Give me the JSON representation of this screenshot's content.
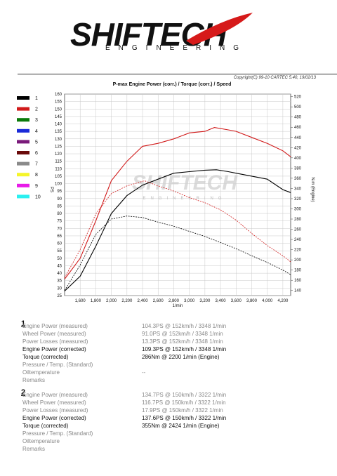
{
  "header": {
    "logo_main": "SHIFTECH",
    "logo_sub": "ENGINEERING",
    "copyright": "Copyright(C) 99-10 CARTEC 5.40, 19/02/13"
  },
  "legend": [
    {
      "label": "1",
      "color": "#000000"
    },
    {
      "label": "2",
      "color": "#d11a1a"
    },
    {
      "label": "3",
      "color": "#0a7a0a"
    },
    {
      "label": "4",
      "color": "#1a2ad8"
    },
    {
      "label": "5",
      "color": "#7a1a7a"
    },
    {
      "label": "6",
      "color": "#6a0a0a"
    },
    {
      "label": "7",
      "color": "#8a8a8a"
    },
    {
      "label": "8",
      "color": "#f5f52a"
    },
    {
      "label": "9",
      "color": "#e81ae8"
    },
    {
      "label": "10",
      "color": "#2af0f0"
    }
  ],
  "chart_data": {
    "type": "line",
    "title": "P-max Engine Power (corr.) / Torque (corr.) / Speed",
    "xlabel": "1/min",
    "ylabel_left": "PS",
    "ylabel_right": "N.m (Engine)",
    "xlim": [
      1400,
      4300
    ],
    "ylim_left": [
      25,
      160
    ],
    "ylim_right": [
      130,
      525
    ],
    "x_ticks": [
      "1,600",
      "1,800",
      "2,000",
      "2,200",
      "2,400",
      "2,600",
      "2,800",
      "3,000",
      "3,200",
      "3,400",
      "3,600",
      "3,800",
      "4,000",
      "4,200"
    ],
    "y_ticks_left": [
      "25",
      "30",
      "35",
      "40",
      "45",
      "50",
      "55",
      "60",
      "65",
      "70",
      "75",
      "80",
      "85",
      "90",
      "95",
      "100",
      "105",
      "110",
      "115",
      "120",
      "125",
      "130",
      "135",
      "140",
      "145",
      "150",
      "155",
      "160"
    ],
    "y_ticks_right": [
      "140",
      "160",
      "180",
      "200",
      "220",
      "240",
      "260",
      "280",
      "300",
      "320",
      "340",
      "360",
      "380",
      "400",
      "420",
      "440",
      "460",
      "480",
      "500",
      "520"
    ],
    "series": [
      {
        "name": "1",
        "color": "#000000",
        "axis": "left",
        "style": "solid",
        "x": [
          1400,
          1600,
          1800,
          2000,
          2200,
          2400,
          2600,
          2800,
          3000,
          3200,
          3348,
          3500,
          3600,
          3800,
          4000,
          4200,
          4300
        ],
        "y": [
          28,
          38,
          58,
          80,
          92,
          99,
          103,
          107,
          108,
          109,
          109.3,
          108,
          107,
          105,
          103,
          96,
          94
        ]
      },
      {
        "name": "2",
        "color": "#d11a1a",
        "axis": "left",
        "style": "solid",
        "x": [
          1400,
          1600,
          1800,
          2000,
          2200,
          2400,
          2600,
          2800,
          3000,
          3200,
          3322,
          3500,
          3600,
          3800,
          4000,
          4200,
          4300
        ],
        "y": [
          36,
          50,
          75,
          102,
          115,
          125,
          127,
          130,
          134,
          135,
          137.6,
          136,
          135,
          131,
          127,
          122,
          118
        ]
      },
      {
        "name": "1",
        "color": "#000000",
        "axis": "right",
        "style": "dashed",
        "x": [
          1400,
          1600,
          1800,
          2000,
          2200,
          2400,
          2600,
          2800,
          3000,
          3200,
          3400,
          3600,
          3800,
          4000,
          4200,
          4300
        ],
        "y": [
          140,
          190,
          250,
          280,
          286,
          283,
          274,
          266,
          256,
          246,
          234,
          222,
          208,
          195,
          180,
          171
        ]
      },
      {
        "name": "2",
        "color": "#d11a1a",
        "axis": "right",
        "style": "dashed",
        "x": [
          1400,
          1600,
          1800,
          2000,
          2200,
          2424,
          2600,
          2800,
          3000,
          3200,
          3400,
          3600,
          3800,
          4000,
          4200,
          4300
        ],
        "y": [
          165,
          220,
          290,
          330,
          345,
          355,
          345,
          335,
          322,
          312,
          298,
          278,
          252,
          228,
          208,
          196
        ]
      }
    ]
  },
  "watermark": {
    "main": "SHIFTECH",
    "sub": "ENGINEERING"
  },
  "results": [
    {
      "number": "1",
      "rows": [
        {
          "label": "Engine Power (measured)",
          "value": "104.3PS @ 152km/h / 3348 1/min",
          "tone": "gray"
        },
        {
          "label": "Wheel Power (measured)",
          "value": "91.0PS @ 152km/h / 3348 1/min",
          "tone": "gray"
        },
        {
          "label": "Power Losses (measured)",
          "value": "13.3PS @ 152km/h / 3348 1/min",
          "tone": "gray"
        },
        {
          "label": "Engine Power (corrected)",
          "value": "109.3PS @ 152km/h / 3348 1/min",
          "tone": "dark"
        },
        {
          "label": "Torque (corrected)",
          "value": "286Nm @ 2200 1/min (Engine)",
          "tone": "dark"
        },
        {
          "label": "Pressure / Temp. (Standard)",
          "value": "",
          "tone": "gray"
        },
        {
          "label": "Oiltemperature",
          "value": "--",
          "tone": "gray"
        },
        {
          "label": "Remarks",
          "value": "",
          "tone": "gray"
        }
      ]
    },
    {
      "number": "2",
      "rows": [
        {
          "label": "Engine Power (measured)",
          "value": "134.7PS @ 150km/h / 3322 1/min",
          "tone": "gray"
        },
        {
          "label": "Wheel Power (measured)",
          "value": "116.7PS @ 150km/h / 3322 1/min",
          "tone": "gray"
        },
        {
          "label": "Power Losses (measured)",
          "value": "17.9PS @ 150km/h / 3322 1/min",
          "tone": "gray"
        },
        {
          "label": "Engine Power (corrected)",
          "value": "137.6PS @ 150km/h / 3322 1/min",
          "tone": "dark"
        },
        {
          "label": "Torque (corrected)",
          "value": "355Nm @ 2424 1/min (Engine)",
          "tone": "dark"
        },
        {
          "label": "Pressure / Temp. (Standard)",
          "value": "",
          "tone": "gray"
        },
        {
          "label": "Oiltemperature",
          "value": "",
          "tone": "gray"
        },
        {
          "label": "Remarks",
          "value": "",
          "tone": "gray"
        }
      ]
    }
  ]
}
